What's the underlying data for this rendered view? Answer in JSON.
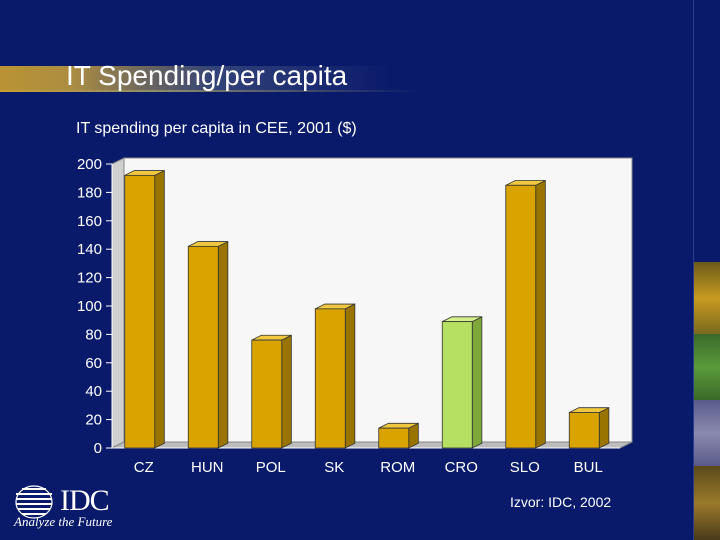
{
  "slide": {
    "title": "IT Spending/per capita",
    "source": "Izvor: IDC, 2002",
    "logo_text": "IDC",
    "tagline": "Analyze the Future"
  },
  "colors": {
    "background": "#0a1a6b",
    "bar": "#d9a300",
    "highlight_bar": "#b5e061",
    "plot_area": "#f7f7f7"
  },
  "chart_data": {
    "type": "bar",
    "title": "IT spending per capita in CEE, 2001 ($)",
    "categories": [
      "CZ",
      "HUN",
      "POL",
      "SK",
      "ROM",
      "CRO",
      "SLO",
      "BUL"
    ],
    "values": [
      192,
      142,
      76,
      98,
      14,
      89,
      185,
      25
    ],
    "highlight": "CRO",
    "ylim": [
      0,
      200
    ],
    "yticks": [
      "0",
      "20",
      "40",
      "60",
      "80",
      "100",
      "120",
      "140",
      "160",
      "180",
      "200"
    ],
    "grid": false,
    "three_d": true
  }
}
